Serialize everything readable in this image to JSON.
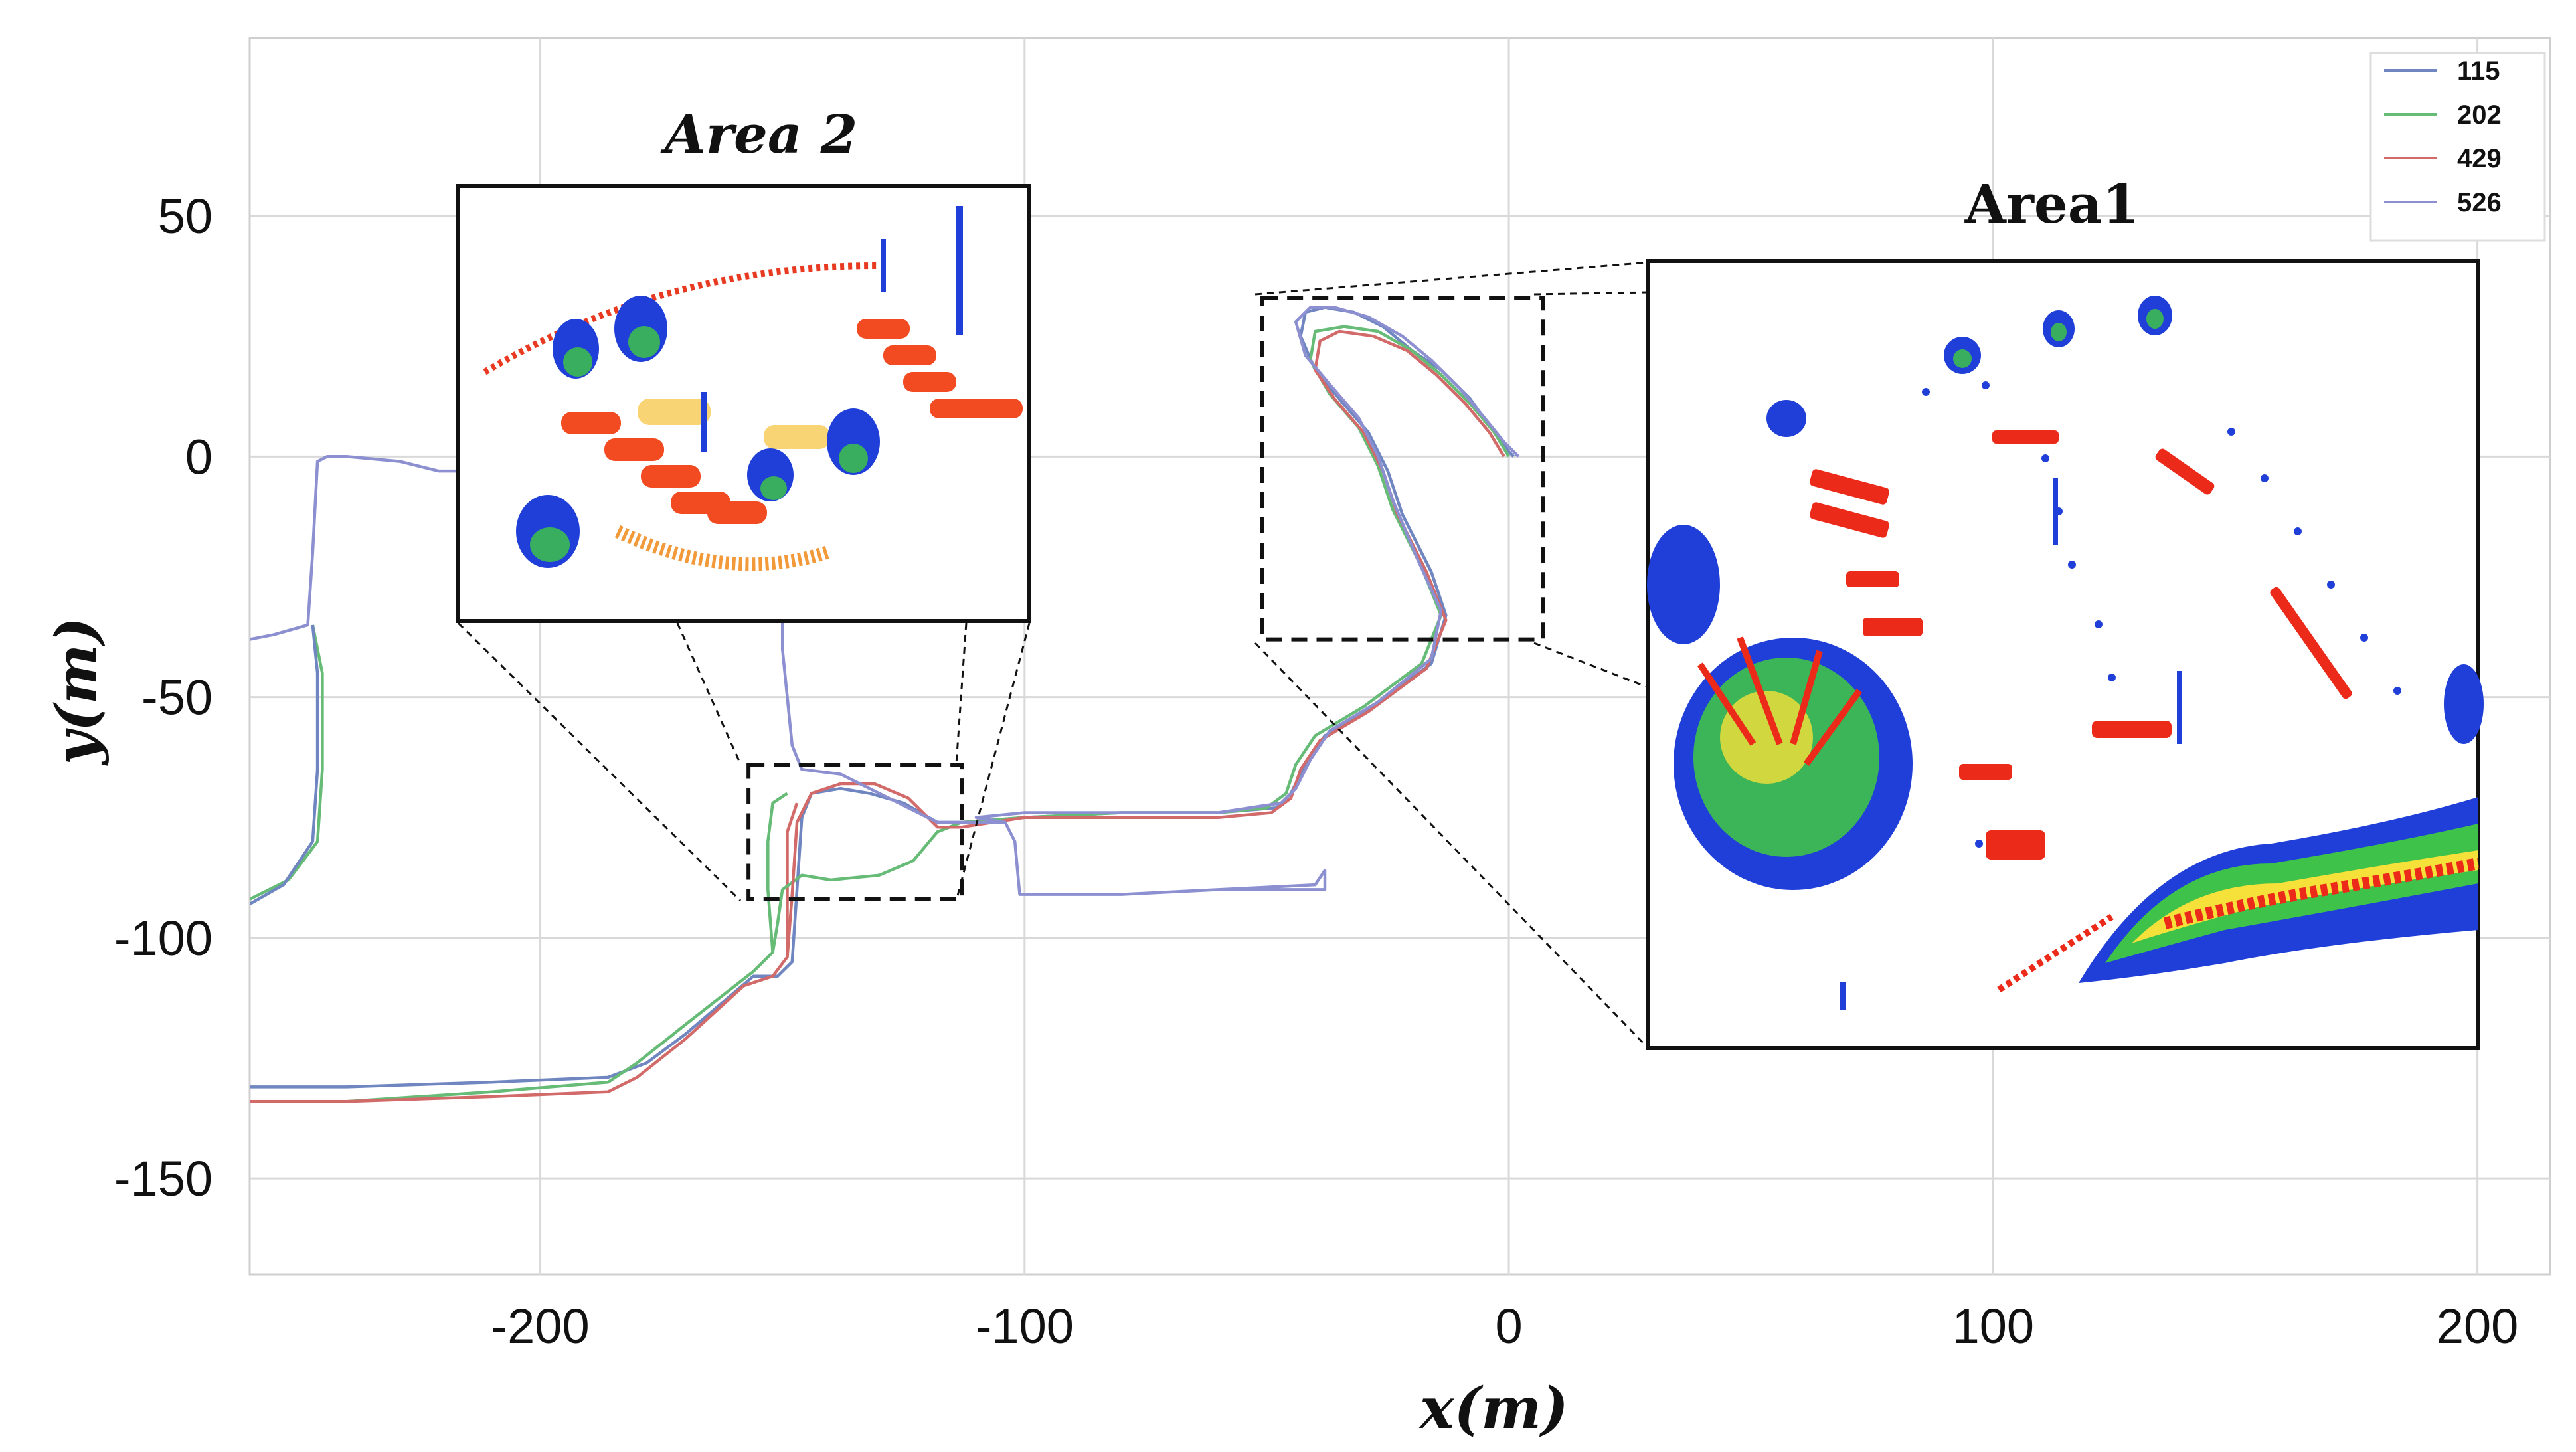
{
  "chart_data": {
    "type": "line",
    "xlabel": "x(m)",
    "ylabel": "y(m)",
    "xlim": [
      -260,
      215
    ],
    "ylim": [
      -170,
      87
    ],
    "xticks": [
      -200,
      -100,
      0,
      100,
      200
    ],
    "yticks": [
      50,
      0,
      -50,
      -100,
      -150
    ],
    "xtick_labels": [
      "-200",
      "-100",
      "0",
      "100",
      "200"
    ],
    "ytick_labels": [
      "50",
      "0",
      "-50",
      "-100",
      "-150"
    ],
    "grid": true,
    "legend_position": "top-right",
    "series": [
      {
        "name": "115",
        "color": "#6f86c0",
        "points": [
          [
            1,
            0
          ],
          [
            0,
            1
          ],
          [
            -3,
            5
          ],
          [
            -8,
            12
          ],
          [
            -14,
            18
          ],
          [
            -20,
            22
          ],
          [
            -26,
            27
          ],
          [
            -32,
            30
          ],
          [
            -38,
            31
          ],
          [
            -42,
            30
          ],
          [
            -43,
            25
          ],
          [
            -40,
            18
          ],
          [
            -35,
            12
          ],
          [
            -29,
            5
          ],
          [
            -25,
            -3
          ],
          [
            -22,
            -12
          ],
          [
            -16,
            -24
          ],
          [
            -13,
            -33
          ],
          [
            -16,
            -43
          ],
          [
            -28,
            -52
          ],
          [
            -38,
            -58
          ],
          [
            -42,
            -64
          ],
          [
            -45,
            -70
          ],
          [
            -48,
            -73
          ],
          [
            -60,
            -74
          ],
          [
            -80,
            -74
          ],
          [
            -100,
            -75
          ],
          [
            -113,
            -76
          ],
          [
            -118,
            -76
          ],
          [
            -125,
            -72
          ],
          [
            -132,
            -70
          ],
          [
            -138,
            -69
          ],
          [
            -144,
            -70
          ],
          [
            -146,
            -75
          ],
          [
            -147,
            -90
          ],
          [
            -148,
            -105
          ],
          [
            -151,
            -108
          ],
          [
            -156,
            -108
          ],
          [
            -170,
            -120
          ],
          [
            -178,
            -126
          ],
          [
            -186,
            -129
          ],
          [
            -210,
            -130
          ],
          [
            -240,
            -131
          ],
          [
            -260,
            -131
          ]
        ]
      },
      {
        "name": "202",
        "color": "#66bb77",
        "points": [
          [
            0,
            0
          ],
          [
            -3,
            5
          ],
          [
            -8,
            11
          ],
          [
            -14,
            17
          ],
          [
            -20,
            22
          ],
          [
            -27,
            26
          ],
          [
            -34,
            27
          ],
          [
            -40,
            26
          ],
          [
            -41,
            20
          ],
          [
            -37,
            13
          ],
          [
            -31,
            6
          ],
          [
            -27,
            -2
          ],
          [
            -24,
            -11
          ],
          [
            -18,
            -23
          ],
          [
            -14,
            -33
          ],
          [
            -18,
            -43
          ],
          [
            -30,
            -52
          ],
          [
            -40,
            -58
          ],
          [
            -44,
            -64
          ],
          [
            -46,
            -70
          ],
          [
            -50,
            -73
          ],
          [
            -60,
            -74
          ],
          [
            -80,
            -74
          ],
          [
            -100,
            -75
          ],
          [
            -113,
            -76
          ],
          [
            -118,
            -78
          ],
          [
            -123,
            -84
          ],
          [
            -130,
            -87
          ],
          [
            -140,
            -88
          ],
          [
            -146,
            -87
          ],
          [
            -150,
            -90
          ],
          [
            -151,
            -97
          ],
          [
            -152,
            -103
          ],
          [
            -156,
            -107
          ],
          [
            -170,
            -118
          ],
          [
            -180,
            -126
          ],
          [
            -186,
            -130
          ],
          [
            -210,
            -132
          ],
          [
            -240,
            -134
          ],
          [
            -260,
            -134
          ]
        ]
      },
      {
        "name": "429",
        "color": "#d26a6a",
        "points": [
          [
            -1,
            0
          ],
          [
            -4,
            5
          ],
          [
            -9,
            11
          ],
          [
            -15,
            17
          ],
          [
            -21,
            22
          ],
          [
            -28,
            25
          ],
          [
            -35,
            26
          ],
          [
            -39,
            24
          ],
          [
            -40,
            18
          ],
          [
            -36,
            12
          ],
          [
            -30,
            5
          ],
          [
            -26,
            -3
          ],
          [
            -23,
            -12
          ],
          [
            -17,
            -24
          ],
          [
            -13,
            -34
          ],
          [
            -17,
            -44
          ],
          [
            -29,
            -53
          ],
          [
            -39,
            -59
          ],
          [
            -43,
            -65
          ],
          [
            -45,
            -71
          ],
          [
            -49,
            -74
          ],
          [
            -60,
            -75
          ],
          [
            -80,
            -75
          ],
          [
            -100,
            -75
          ],
          [
            -113,
            -77
          ],
          [
            -118,
            -77
          ],
          [
            -124,
            -71
          ],
          [
            -131,
            -68
          ],
          [
            -138,
            -68
          ],
          [
            -144,
            -70
          ],
          [
            -147,
            -76
          ],
          [
            -148,
            -91
          ],
          [
            -149,
            -104
          ],
          [
            -152,
            -108
          ],
          [
            -158,
            -110
          ],
          [
            -170,
            -121
          ],
          [
            -180,
            -129
          ],
          [
            -186,
            -132
          ],
          [
            -210,
            -133
          ],
          [
            -240,
            -134
          ],
          [
            -260,
            -134
          ]
        ]
      },
      {
        "name": "526",
        "color": "#8c8fd0",
        "points": [
          [
            2,
            0
          ],
          [
            -1,
            3
          ],
          [
            -5,
            8
          ],
          [
            -10,
            14
          ],
          [
            -16,
            20
          ],
          [
            -22,
            25
          ],
          [
            -29,
            29
          ],
          [
            -36,
            31
          ],
          [
            -41,
            31
          ],
          [
            -44,
            28
          ],
          [
            -42,
            21
          ],
          [
            -37,
            15
          ],
          [
            -31,
            8
          ],
          [
            -27,
            0
          ],
          [
            -24,
            -9
          ],
          [
            -19,
            -21
          ],
          [
            -14,
            -32
          ],
          [
            -16,
            -42
          ],
          [
            -27,
            -51
          ],
          [
            -37,
            -57
          ],
          [
            -41,
            -63
          ],
          [
            -44,
            -69
          ],
          [
            -47,
            -72
          ],
          [
            -60,
            -74
          ],
          [
            -80,
            -74
          ],
          [
            -100,
            -74
          ],
          [
            -110,
            -75
          ],
          [
            -104,
            -76
          ],
          [
            -102,
            -80
          ],
          [
            -101,
            -91
          ],
          [
            -80,
            -91
          ],
          [
            -60,
            -90
          ],
          [
            -38,
            -90
          ],
          [
            -38,
            -86
          ],
          [
            -40,
            -89
          ],
          [
            -60,
            -90
          ],
          [
            -80,
            -91
          ],
          [
            -101,
            -91
          ],
          [
            -102,
            -80
          ],
          [
            -104,
            -76
          ],
          [
            -113,
            -76
          ],
          [
            -118,
            -76
          ],
          [
            -126,
            -72
          ],
          [
            -138,
            -66
          ],
          [
            -146,
            -65
          ],
          [
            -148,
            -60
          ],
          [
            -149,
            -50
          ],
          [
            -150,
            -40
          ],
          [
            -150,
            -30
          ],
          [
            -151,
            -20
          ],
          [
            -152,
            -10
          ],
          [
            -152,
            -5
          ],
          [
            -160,
            -4
          ],
          [
            -180,
            -3
          ],
          [
            -200,
            -3
          ],
          [
            -218,
            -3
          ],
          [
            -221,
            -3
          ],
          [
            -229,
            -1
          ],
          [
            -240,
            0
          ],
          [
            -244,
            0
          ],
          [
            -246,
            -1
          ],
          [
            -247,
            -20
          ],
          [
            -248,
            -35
          ],
          [
            -255,
            -37
          ],
          [
            -260,
            -38
          ]
        ]
      }
    ],
    "extra_paths": [
      {
        "color": "#66bb77",
        "points": [
          [
            -247,
            -35
          ],
          [
            -245,
            -45
          ],
          [
            -245,
            -65
          ],
          [
            -246,
            -80
          ],
          [
            -252,
            -88
          ],
          [
            -260,
            -92
          ]
        ]
      },
      {
        "color": "#6f86c0",
        "points": [
          [
            -247,
            -35
          ],
          [
            -246,
            -45
          ],
          [
            -246,
            -65
          ],
          [
            -247,
            -80
          ],
          [
            -253,
            -89
          ],
          [
            -260,
            -93
          ]
        ]
      },
      {
        "color": "#66bb77",
        "points": [
          [
            -152,
            -103
          ],
          [
            -153,
            -90
          ],
          [
            -153,
            -80
          ],
          [
            -152,
            -72
          ],
          [
            -149,
            -70
          ]
        ]
      },
      {
        "color": "#d26a6a",
        "points": [
          [
            -149,
            -104
          ],
          [
            -149,
            -90
          ],
          [
            -149,
            -78
          ],
          [
            -147,
            -72
          ]
        ]
      }
    ],
    "annotations": [
      {
        "text": "Area 2",
        "style": "italic"
      },
      {
        "text": "Area1",
        "style": "bold"
      }
    ],
    "highlight_boxes": [
      {
        "label": "Area 2",
        "x_range": [
          -157,
          -113
        ],
        "y_range": [
          -92,
          -64
        ]
      },
      {
        "label": "Area1",
        "x_range": [
          -51,
          7
        ],
        "y_range": [
          -38,
          33
        ]
      }
    ]
  }
}
